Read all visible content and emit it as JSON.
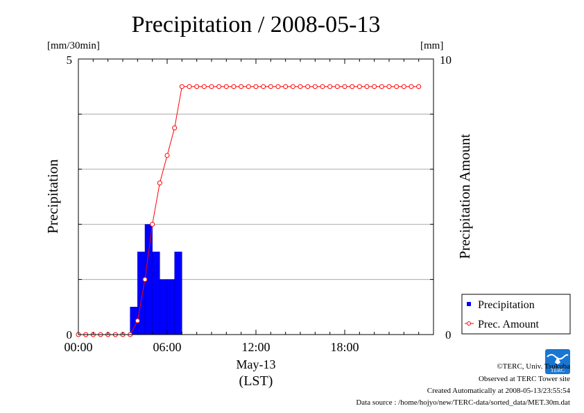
{
  "chart_data": {
    "type": "bar+line",
    "title": "Precipitation / 2008-05-13",
    "y_left": {
      "label": "Precipitation",
      "unit": "[mm/30min]",
      "range": [
        0,
        5
      ],
      "tick_labels": [
        "0",
        "5"
      ]
    },
    "y_right": {
      "label": "Precipitation Amount",
      "unit": "[mm]",
      "range": [
        0,
        10
      ],
      "tick_labels": [
        "0",
        "10"
      ]
    },
    "x_axis": {
      "unit": "hours",
      "range": [
        0,
        24
      ],
      "tick_labels": [
        {
          "value": 0,
          "label": "00:00"
        },
        {
          "value": 6,
          "label": "06:00"
        },
        {
          "value": 12,
          "label": "12:00"
        },
        {
          "value": 18,
          "label": "18:00"
        }
      ],
      "date_label": "May-13",
      "timezone_label": "(LST)"
    },
    "grid": true,
    "legend": {
      "placement": "right-bottom",
      "entries": [
        {
          "label": "Precipitation",
          "marker": "square",
          "color": "#0000ff"
        },
        {
          "label": "Prec. Amount",
          "marker": "circle",
          "color": "#ff0000"
        }
      ]
    },
    "precipitation_bars": [
      {
        "time": "03:30",
        "value": 0.5
      },
      {
        "time": "04:00",
        "value": 1.5
      },
      {
        "time": "04:30",
        "value": 2.0
      },
      {
        "time": "05:00",
        "value": 1.5
      },
      {
        "time": "05:30",
        "value": 1.0
      },
      {
        "time": "06:00",
        "value": 1.0
      },
      {
        "time": "06:30",
        "value": 1.5
      }
    ],
    "bar_color": "#0000ff",
    "amount_series": {
      "name": "Prec. Amount",
      "color": "#ff0000",
      "x": [
        "00:00",
        "00:30",
        "01:00",
        "01:30",
        "02:00",
        "02:30",
        "03:00",
        "03:30",
        "04:00",
        "04:30",
        "05:00",
        "05:30",
        "06:00",
        "06:30",
        "07:00",
        "07:30",
        "08:00",
        "08:30",
        "09:00",
        "09:30",
        "10:00",
        "10:30",
        "11:00",
        "11:30",
        "12:00",
        "12:30",
        "13:00",
        "13:30",
        "14:00",
        "14:30",
        "15:00",
        "15:30",
        "16:00",
        "16:30",
        "17:00",
        "17:30",
        "18:00",
        "18:30",
        "19:00",
        "19:30",
        "20:00",
        "20:30",
        "21:00",
        "21:30",
        "22:00",
        "22:30",
        "23:00"
      ],
      "y": [
        0,
        0,
        0,
        0,
        0,
        0,
        0,
        0,
        0.5,
        2,
        4,
        5.5,
        6.5,
        7.5,
        9,
        9,
        9,
        9,
        9,
        9,
        9,
        9,
        9,
        9,
        9,
        9,
        9,
        9,
        9,
        9,
        9,
        9,
        9,
        9,
        9,
        9,
        9,
        9,
        9,
        9,
        9,
        9,
        9,
        9,
        9,
        9,
        9
      ]
    }
  },
  "credits": {
    "copyright": "©TERC, Univ. Tsukuba",
    "observed": "Observed at TERC Tower site",
    "created": "Created Automatically at 2008-05-13/23:55:54",
    "source": "Data source : /home/hojyo/new/TERC-data/sorted_data/MET.30m.dat",
    "logo_text": "TERC"
  }
}
